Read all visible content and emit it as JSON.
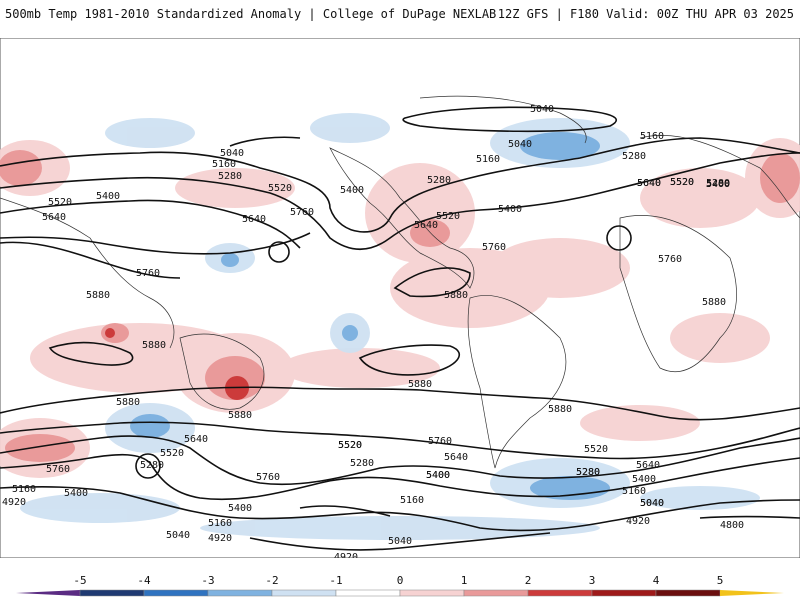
{
  "header": {
    "title_left": "500mb Temp 1981-2010 Standardized Anomaly | College of DuPage NEXLAB",
    "title_right": "12Z GFS | F180 Valid: 00Z THU APR 03 2025"
  },
  "colorbar": {
    "ticks": [
      "-5",
      "-4",
      "-3",
      "-2",
      "-1",
      "0",
      "1",
      "2",
      "3",
      "4",
      "5"
    ],
    "colors": [
      "#5b2c83",
      "#1f3a72",
      "#2f73c0",
      "#7fb2e0",
      "#cfe1f2",
      "#ffffff",
      "#f6d2d2",
      "#e99a9a",
      "#cc3b3b",
      "#9e1a1a",
      "#6b0f0f",
      "#f2c21b"
    ]
  },
  "contour_labels": [
    {
      "text": "5040"
    },
    {
      "text": "5040"
    },
    {
      "text": "5160"
    },
    {
      "text": "5280"
    },
    {
      "text": "5160"
    },
    {
      "text": "5280"
    },
    {
      "text": "5040"
    },
    {
      "text": "5160"
    },
    {
      "text": "5280"
    },
    {
      "text": "5400"
    },
    {
      "text": "5520"
    },
    {
      "text": "5400"
    },
    {
      "text": "5520"
    },
    {
      "text": "5640"
    },
    {
      "text": "5400"
    },
    {
      "text": "5520"
    },
    {
      "text": "5640"
    },
    {
      "text": "5760"
    },
    {
      "text": "5640"
    },
    {
      "text": "5760"
    },
    {
      "text": "5880"
    },
    {
      "text": "5280"
    },
    {
      "text": "5400"
    },
    {
      "text": "5520"
    },
    {
      "text": "5640"
    },
    {
      "text": "5520"
    },
    {
      "text": "5640"
    },
    {
      "text": "5400"
    },
    {
      "text": "5760"
    },
    {
      "text": "5880"
    },
    {
      "text": "5880"
    },
    {
      "text": "5880"
    },
    {
      "text": "5760"
    },
    {
      "text": "5880"
    },
    {
      "text": "5880"
    },
    {
      "text": "5880"
    },
    {
      "text": "5880"
    },
    {
      "text": "5760"
    },
    {
      "text": "5640"
    },
    {
      "text": "5520"
    },
    {
      "text": "5280"
    },
    {
      "text": "5760"
    },
    {
      "text": "5520"
    },
    {
      "text": "5280"
    },
    {
      "text": "5160"
    },
    {
      "text": "5400"
    },
    {
      "text": "5640"
    },
    {
      "text": "5400"
    },
    {
      "text": "5760"
    },
    {
      "text": "5520"
    },
    {
      "text": "5640"
    },
    {
      "text": "5400"
    },
    {
      "text": "5280"
    },
    {
      "text": "5160"
    },
    {
      "text": "5040"
    },
    {
      "text": "4920"
    },
    {
      "text": "5040"
    },
    {
      "text": "5160"
    },
    {
      "text": "5400"
    },
    {
      "text": "4920"
    },
    {
      "text": "5040"
    },
    {
      "text": "4920"
    },
    {
      "text": "4920"
    },
    {
      "text": "5040"
    },
    {
      "text": "5160"
    },
    {
      "text": "5400"
    },
    {
      "text": "5520"
    },
    {
      "text": "5280"
    },
    {
      "text": "4800"
    }
  ]
}
